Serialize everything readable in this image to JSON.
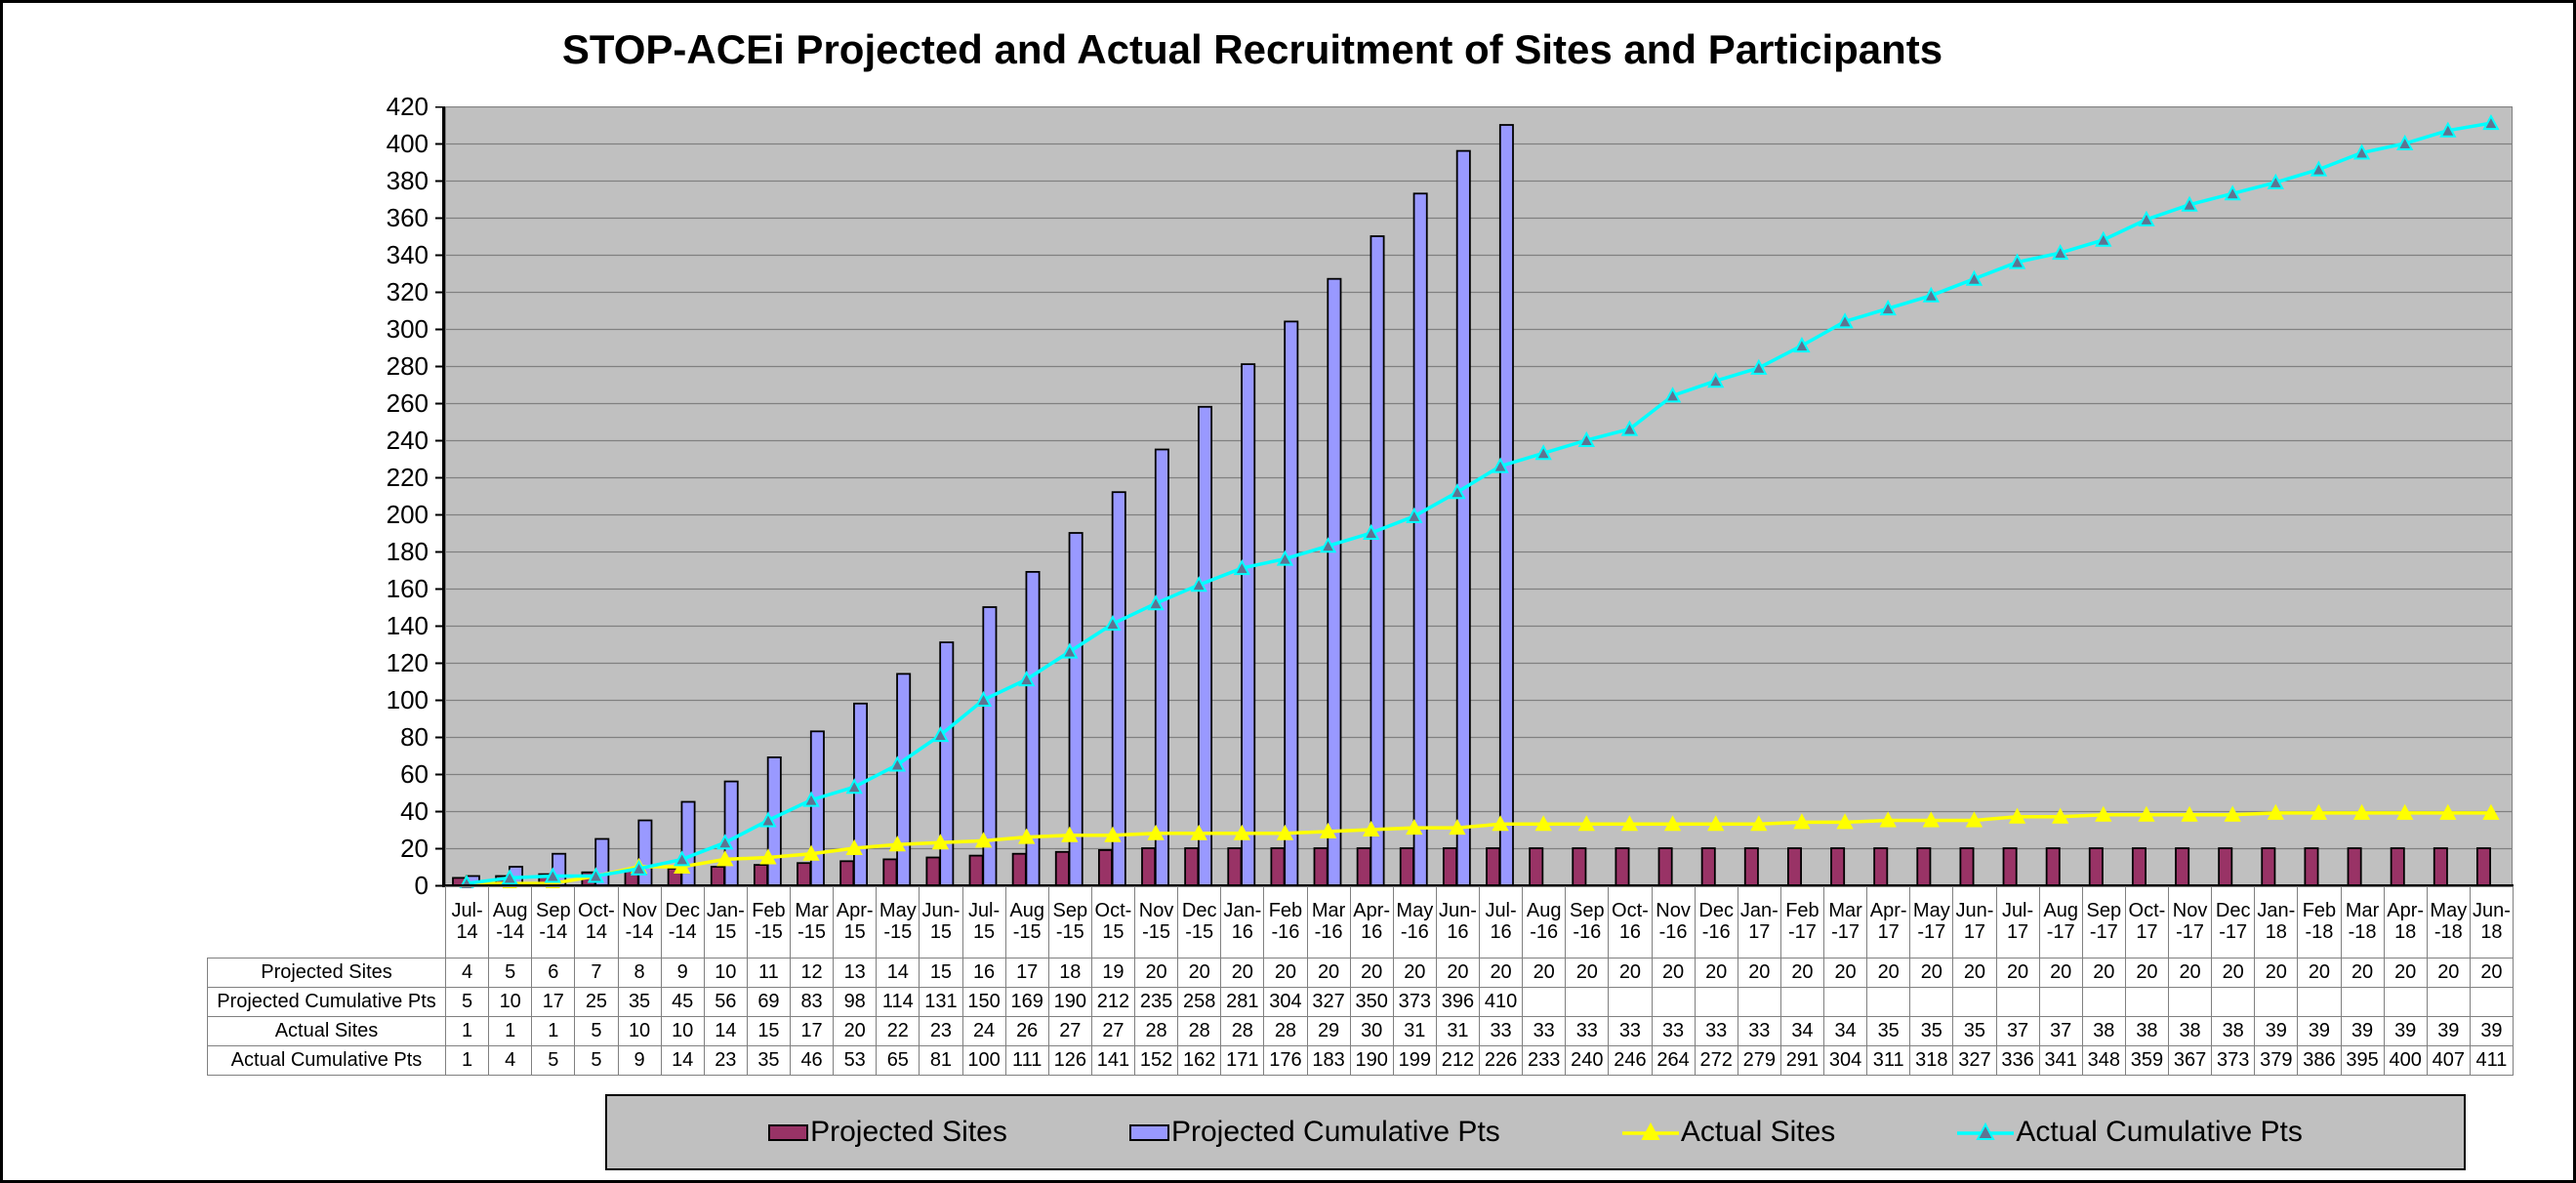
{
  "chart_data": {
    "type": "combo-bar-line",
    "title": "STOP-ACEi Projected and Actual Recruitment of Sites and Participants",
    "categories": [
      "Jul-14",
      "Aug-14",
      "Sep-14",
      "Oct-14",
      "Nov-14",
      "Dec-14",
      "Jan-15",
      "Feb-15",
      "Mar-15",
      "Apr-15",
      "May-15",
      "Jun-15",
      "Jul-15",
      "Aug-15",
      "Sep-15",
      "Oct-15",
      "Nov-15",
      "Dec-15",
      "Jan-16",
      "Feb-16",
      "Mar-16",
      "Apr-16",
      "May-16",
      "Jun-16",
      "Jul-16",
      "Aug-16",
      "Sep-16",
      "Oct-16",
      "Nov-16",
      "Dec-16",
      "Jan-17",
      "Feb-17",
      "Mar-17",
      "Apr-17",
      "May-17",
      "Jun-17",
      "Jul-17",
      "Aug-17",
      "Sep-17",
      "Oct-17",
      "Nov-17",
      "Dec-17",
      "Jan-18",
      "Feb-18",
      "Mar-18",
      "Apr-18",
      "May-18",
      "Jun-18"
    ],
    "y_axis": {
      "min": 0,
      "max": 420,
      "step": 20,
      "gridlines": true
    },
    "plot_background": "#C0C0C0",
    "gridline_color": "#808080",
    "legend_position": "bottom",
    "data_table_shown": true,
    "series": [
      {
        "name": "Projected Sites",
        "type": "bar",
        "color": "#993366",
        "values": [
          4,
          5,
          6,
          7,
          8,
          9,
          10,
          11,
          12,
          13,
          14,
          15,
          16,
          17,
          18,
          19,
          20,
          20,
          20,
          20,
          20,
          20,
          20,
          20,
          20,
          20,
          20,
          20,
          20,
          20,
          20,
          20,
          20,
          20,
          20,
          20,
          20,
          20,
          20,
          20,
          20,
          20,
          20,
          20,
          20,
          20,
          20,
          20
        ]
      },
      {
        "name": "Projected Cumulative Pts",
        "type": "bar",
        "color": "#9999FF",
        "values": [
          5,
          10,
          17,
          25,
          35,
          45,
          56,
          69,
          83,
          98,
          114,
          131,
          150,
          169,
          190,
          212,
          235,
          258,
          281,
          304,
          327,
          350,
          373,
          396,
          410
        ]
      },
      {
        "name": "Actual Sites",
        "type": "line",
        "color": "#FFFF00",
        "marker": "triangle",
        "marker_fill": "#FFFF00",
        "values": [
          1,
          1,
          1,
          5,
          10,
          10,
          14,
          15,
          17,
          20,
          22,
          23,
          24,
          26,
          27,
          27,
          28,
          28,
          28,
          28,
          29,
          30,
          31,
          31,
          33,
          33,
          33,
          33,
          33,
          33,
          33,
          34,
          34,
          35,
          35,
          35,
          37,
          37,
          38,
          38,
          38,
          38,
          39,
          39,
          39,
          39,
          39,
          39
        ]
      },
      {
        "name": "Actual Cumulative Pts",
        "type": "line",
        "color": "#00FFFF",
        "marker": "triangle",
        "marker_fill": "#5F7391",
        "values": [
          1,
          4,
          5,
          5,
          9,
          14,
          23,
          35,
          46,
          53,
          65,
          81,
          100,
          111,
          126,
          141,
          152,
          162,
          171,
          176,
          183,
          190,
          199,
          212,
          226,
          233,
          240,
          246,
          264,
          272,
          279,
          291,
          304,
          311,
          318,
          327,
          336,
          341,
          348,
          359,
          367,
          373,
          379,
          386,
          395,
          400,
          407,
          411
        ]
      }
    ]
  }
}
